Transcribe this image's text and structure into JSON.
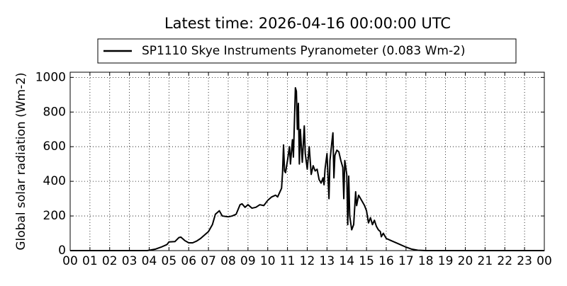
{
  "chart_data": {
    "type": "line",
    "title": "Latest time: 2026-04-16 00:00:00 UTC",
    "y_label": "Global solar radiation (Wm-2)",
    "legend": "top",
    "grid": true,
    "xlim": [
      0,
      24
    ],
    "ylim": [
      0,
      1030
    ],
    "yticks": [
      0,
      200,
      400,
      600,
      800,
      1000
    ],
    "xticks": [
      {
        "value": 0,
        "label": "00"
      },
      {
        "value": 1,
        "label": "01"
      },
      {
        "value": 2,
        "label": "02"
      },
      {
        "value": 3,
        "label": "03"
      },
      {
        "value": 4,
        "label": "04"
      },
      {
        "value": 5,
        "label": "05"
      },
      {
        "value": 6,
        "label": "06"
      },
      {
        "value": 7,
        "label": "07"
      },
      {
        "value": 8,
        "label": "08"
      },
      {
        "value": 9,
        "label": "09"
      },
      {
        "value": 10,
        "label": "10"
      },
      {
        "value": 11,
        "label": "11"
      },
      {
        "value": 12,
        "label": "12"
      },
      {
        "value": 13,
        "label": "13"
      },
      {
        "value": 14,
        "label": "14"
      },
      {
        "value": 15,
        "label": "15"
      },
      {
        "value": 16,
        "label": "16"
      },
      {
        "value": 17,
        "label": "17"
      },
      {
        "value": 18,
        "label": "18"
      },
      {
        "value": 19,
        "label": "19"
      },
      {
        "value": 20,
        "label": "20"
      },
      {
        "value": 21,
        "label": "21"
      },
      {
        "value": 22,
        "label": "22"
      },
      {
        "value": 23,
        "label": "23"
      },
      {
        "value": 24,
        "label": "00"
      }
    ],
    "x": [
      0,
      3.9,
      4.0,
      4.3,
      4.6,
      4.9,
      5.0,
      5.3,
      5.5,
      5.6,
      5.8,
      6.0,
      6.2,
      6.4,
      6.6,
      6.8,
      7.0,
      7.2,
      7.35,
      7.55,
      7.7,
      8.0,
      8.2,
      8.4,
      8.6,
      8.7,
      8.85,
      9.0,
      9.2,
      9.4,
      9.6,
      9.8,
      10.0,
      10.2,
      10.4,
      10.5,
      10.7,
      10.75,
      10.8,
      10.85,
      10.9,
      11.0,
      11.1,
      11.15,
      11.25,
      11.3,
      11.4,
      11.45,
      11.5,
      11.55,
      11.6,
      11.65,
      11.75,
      11.85,
      11.9,
      12.0,
      12.1,
      12.2,
      12.3,
      12.4,
      12.5,
      12.6,
      12.7,
      12.8,
      12.85,
      12.9,
      13.0,
      13.05,
      13.1,
      13.15,
      13.25,
      13.3,
      13.35,
      13.4,
      13.5,
      13.6,
      13.7,
      13.8,
      13.85,
      13.9,
      14.0,
      14.05,
      14.1,
      14.15,
      14.25,
      14.35,
      14.45,
      14.5,
      14.6,
      14.75,
      14.9,
      15.0,
      15.1,
      15.2,
      15.3,
      15.4,
      15.5,
      15.6,
      15.7,
      15.75,
      15.85,
      16.0,
      16.3,
      16.6,
      17.0,
      17.3,
      17.6,
      18.0,
      24
    ],
    "series": [
      {
        "name": "SP1110 Skye Instruments Pyranometer (0.083 Wm-2)",
        "color": "#000000",
        "values": [
          0,
          0,
          2,
          8,
          20,
          35,
          50,
          52,
          75,
          78,
          58,
          45,
          45,
          55,
          70,
          90,
          110,
          150,
          210,
          230,
          200,
          195,
          200,
          210,
          265,
          270,
          250,
          265,
          245,
          250,
          265,
          260,
          290,
          310,
          320,
          310,
          360,
          450,
          610,
          460,
          450,
          520,
          600,
          500,
          640,
          540,
          940,
          920,
          700,
          850,
          500,
          700,
          510,
          720,
          560,
          470,
          600,
          440,
          490,
          460,
          470,
          410,
          390,
          420,
          380,
          470,
          560,
          430,
          300,
          520,
          630,
          680,
          420,
          550,
          580,
          570,
          520,
          480,
          300,
          520,
          440,
          150,
          430,
          200,
          120,
          150,
          340,
          260,
          320,
          290,
          260,
          230,
          160,
          190,
          150,
          175,
          140,
          120,
          110,
          80,
          100,
          70,
          55,
          40,
          20,
          8,
          2,
          0,
          0
        ]
      }
    ]
  }
}
